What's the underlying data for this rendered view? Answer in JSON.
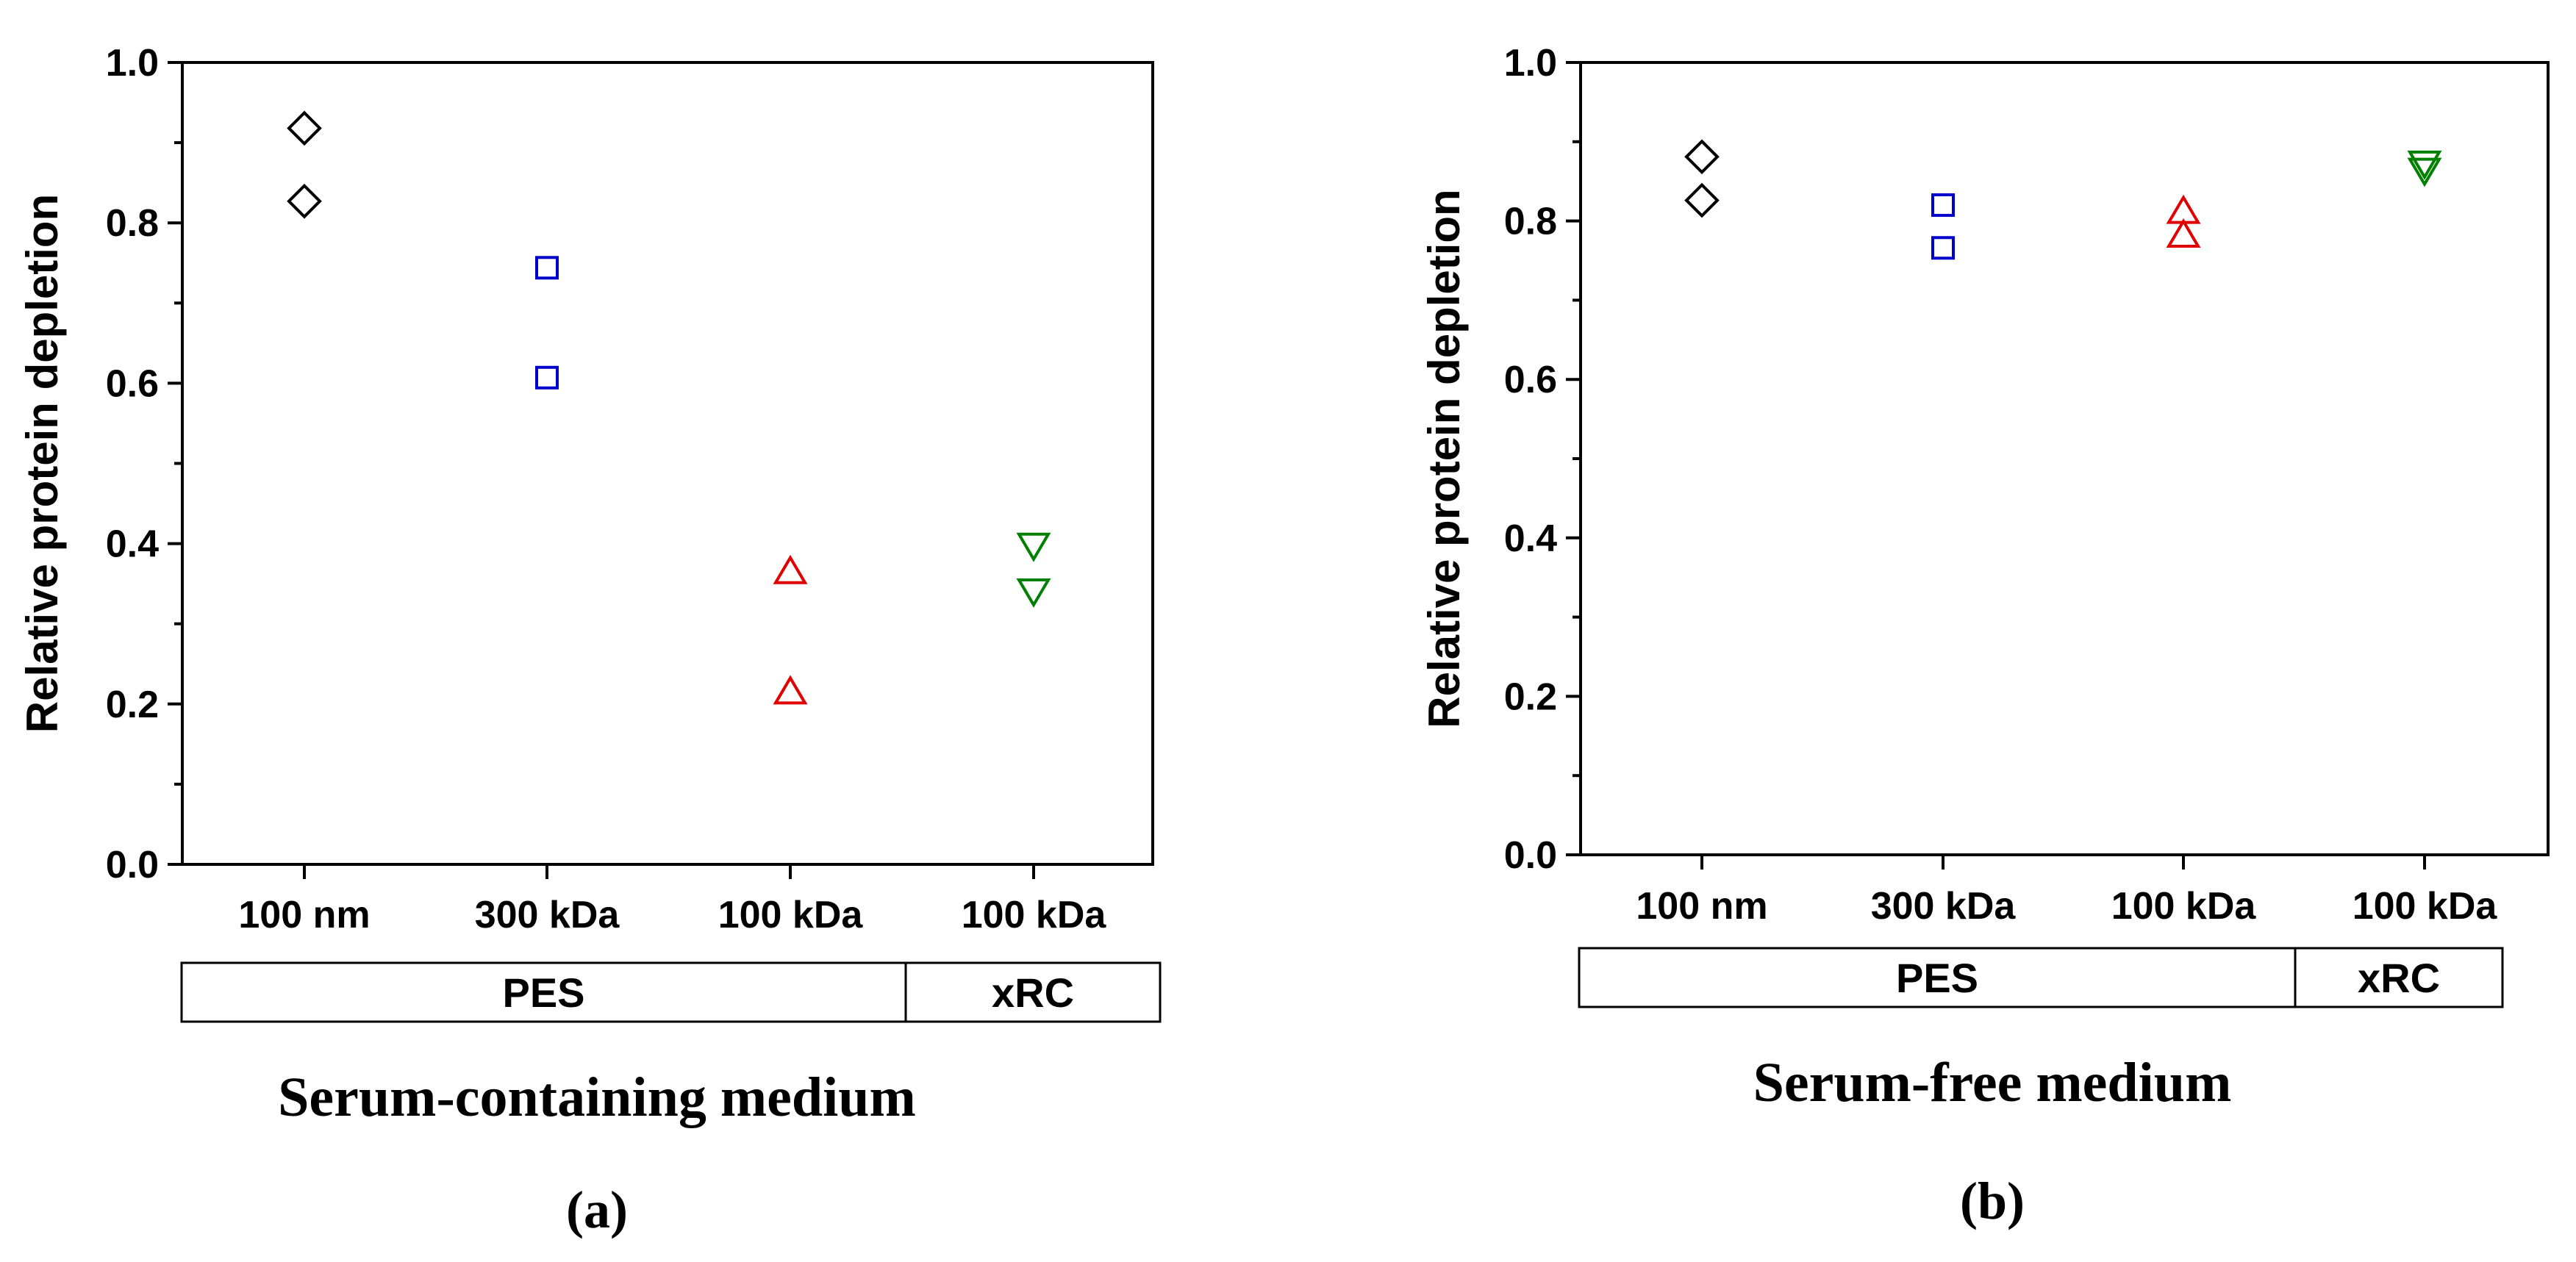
{
  "chart_data": [
    {
      "type": "scatter",
      "panel_label": "(a)",
      "caption": "Serum-containing medium",
      "ylabel": "Relative protein depletion",
      "ylim": [
        0,
        1.0
      ],
      "yticks": [
        "0.0",
        "0.2",
        "0.4",
        "0.6",
        "0.8",
        "1.0"
      ],
      "categories": [
        "100 nm",
        "300 kDa",
        "100 kDa",
        "100 kDa"
      ],
      "groups": [
        {
          "label": "PES",
          "span": [
            0,
            2
          ]
        },
        {
          "label": "xRC",
          "span": [
            3,
            3
          ]
        }
      ],
      "series": [
        {
          "marker": "diamond",
          "color": "#000000",
          "category_index": 0,
          "values": [
            0.918,
            0.827
          ]
        },
        {
          "marker": "square",
          "color": "#0000cc",
          "category_index": 1,
          "values": [
            0.744,
            0.607
          ]
        },
        {
          "marker": "triangle-up",
          "color": "#e00000",
          "category_index": 2,
          "values": [
            0.365,
            0.215
          ]
        },
        {
          "marker": "triangle-down",
          "color": "#008000",
          "category_index": 3,
          "values": [
            0.398,
            0.341
          ]
        }
      ]
    },
    {
      "type": "scatter",
      "panel_label": "(b)",
      "caption": "Serum-free medium",
      "ylabel": "Relative protein depletion",
      "ylim": [
        0,
        1.0
      ],
      "yticks": [
        "0.0",
        "0.2",
        "0.4",
        "0.6",
        "0.8",
        "1.0"
      ],
      "categories": [
        "100 nm",
        "300 kDa",
        "100 kDa",
        "100 kDa"
      ],
      "groups": [
        {
          "label": "PES",
          "span": [
            0,
            2
          ]
        },
        {
          "label": "xRC",
          "span": [
            3,
            3
          ]
        }
      ],
      "series": [
        {
          "marker": "diamond",
          "color": "#000000",
          "category_index": 0,
          "values": [
            0.881,
            0.826
          ]
        },
        {
          "marker": "square",
          "color": "#0000cc",
          "category_index": 1,
          "values": [
            0.82,
            0.766
          ]
        },
        {
          "marker": "triangle-up",
          "color": "#e00000",
          "category_index": 2,
          "values": [
            0.812,
            0.782
          ]
        },
        {
          "marker": "triangle-down",
          "color": "#008000",
          "category_index": 3,
          "values": [
            0.873,
            0.864
          ]
        }
      ]
    }
  ]
}
